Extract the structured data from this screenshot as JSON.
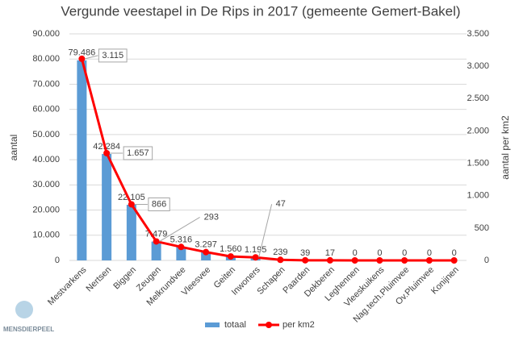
{
  "chart_data": {
    "type": "bar",
    "title": "Vergunde veestapel in  De Rips in  2017 (gemeente Gemert-Bakel)",
    "y_label": "aantal",
    "y2_label": "aantal per km2",
    "categories": [
      "Mestvarkens",
      "Nertsen",
      "Biggen",
      "Zeugen",
      "Melkrundvee",
      "Vleesvee",
      "Geiten",
      "Inwoners",
      "Schapen",
      "Paarden",
      "Dekberen",
      "Leghennen",
      "Vleeskuikens",
      "Nag.tech.Pluimvee",
      "Ov.Pluimvee",
      "Konijnen"
    ],
    "series": [
      {
        "name": "totaal",
        "type": "bar",
        "color": "#5b9bd5",
        "values": [
          79486,
          42284,
          22105,
          7479,
          5316,
          3297,
          1560,
          1195,
          239,
          39,
          17,
          0,
          0,
          0,
          0,
          0
        ],
        "value_labels": [
          "79.486",
          "42.284",
          "22.105",
          "7.479",
          "5.316",
          "3.297",
          "1.560",
          "1.195",
          "239",
          "39",
          "17",
          "0",
          "0",
          "0",
          "0",
          "0"
        ]
      },
      {
        "name": "per km2",
        "type": "line",
        "axis": "y2",
        "color": "#ff0000",
        "values": [
          3115,
          1657,
          866,
          293,
          208,
          129,
          61,
          47,
          9,
          2,
          1,
          0,
          0,
          0,
          0,
          0
        ],
        "value_labels": [
          "3.115",
          "1.657",
          "866",
          "293",
          null,
          null,
          null,
          "47",
          null,
          null,
          null,
          null,
          null,
          null,
          null,
          null
        ]
      }
    ],
    "ylim": [
      0,
      90000
    ],
    "yticks": [
      0,
      {
        "value": 10000,
        "label": "10.000"
      },
      {
        "value": 20000,
        "label": "20.000"
      },
      {
        "value": 30000,
        "label": "30.000"
      },
      {
        "value": 40000,
        "label": "40.000"
      },
      {
        "value": 50000,
        "label": "50.000"
      },
      {
        "value": 60000,
        "label": "60.000"
      },
      {
        "value": 70000,
        "label": "70.000"
      },
      {
        "value": 80000,
        "label": "80.000"
      },
      {
        "value": 90000,
        "label": "90.000"
      }
    ],
    "y2lim": [
      0,
      3500
    ],
    "y2ticks": [
      0,
      500,
      {
        "value": 1000,
        "label": "1.000"
      },
      {
        "value": 1500,
        "label": "1.500"
      },
      {
        "value": 2000,
        "label": "2.000"
      },
      {
        "value": 2500,
        "label": "2.500"
      },
      {
        "value": 3000,
        "label": "3.000"
      },
      {
        "value": 3500,
        "label": "3.500"
      }
    ],
    "grid": true,
    "legend": "bottom",
    "logo_text": "MENSDIERPEEL"
  }
}
